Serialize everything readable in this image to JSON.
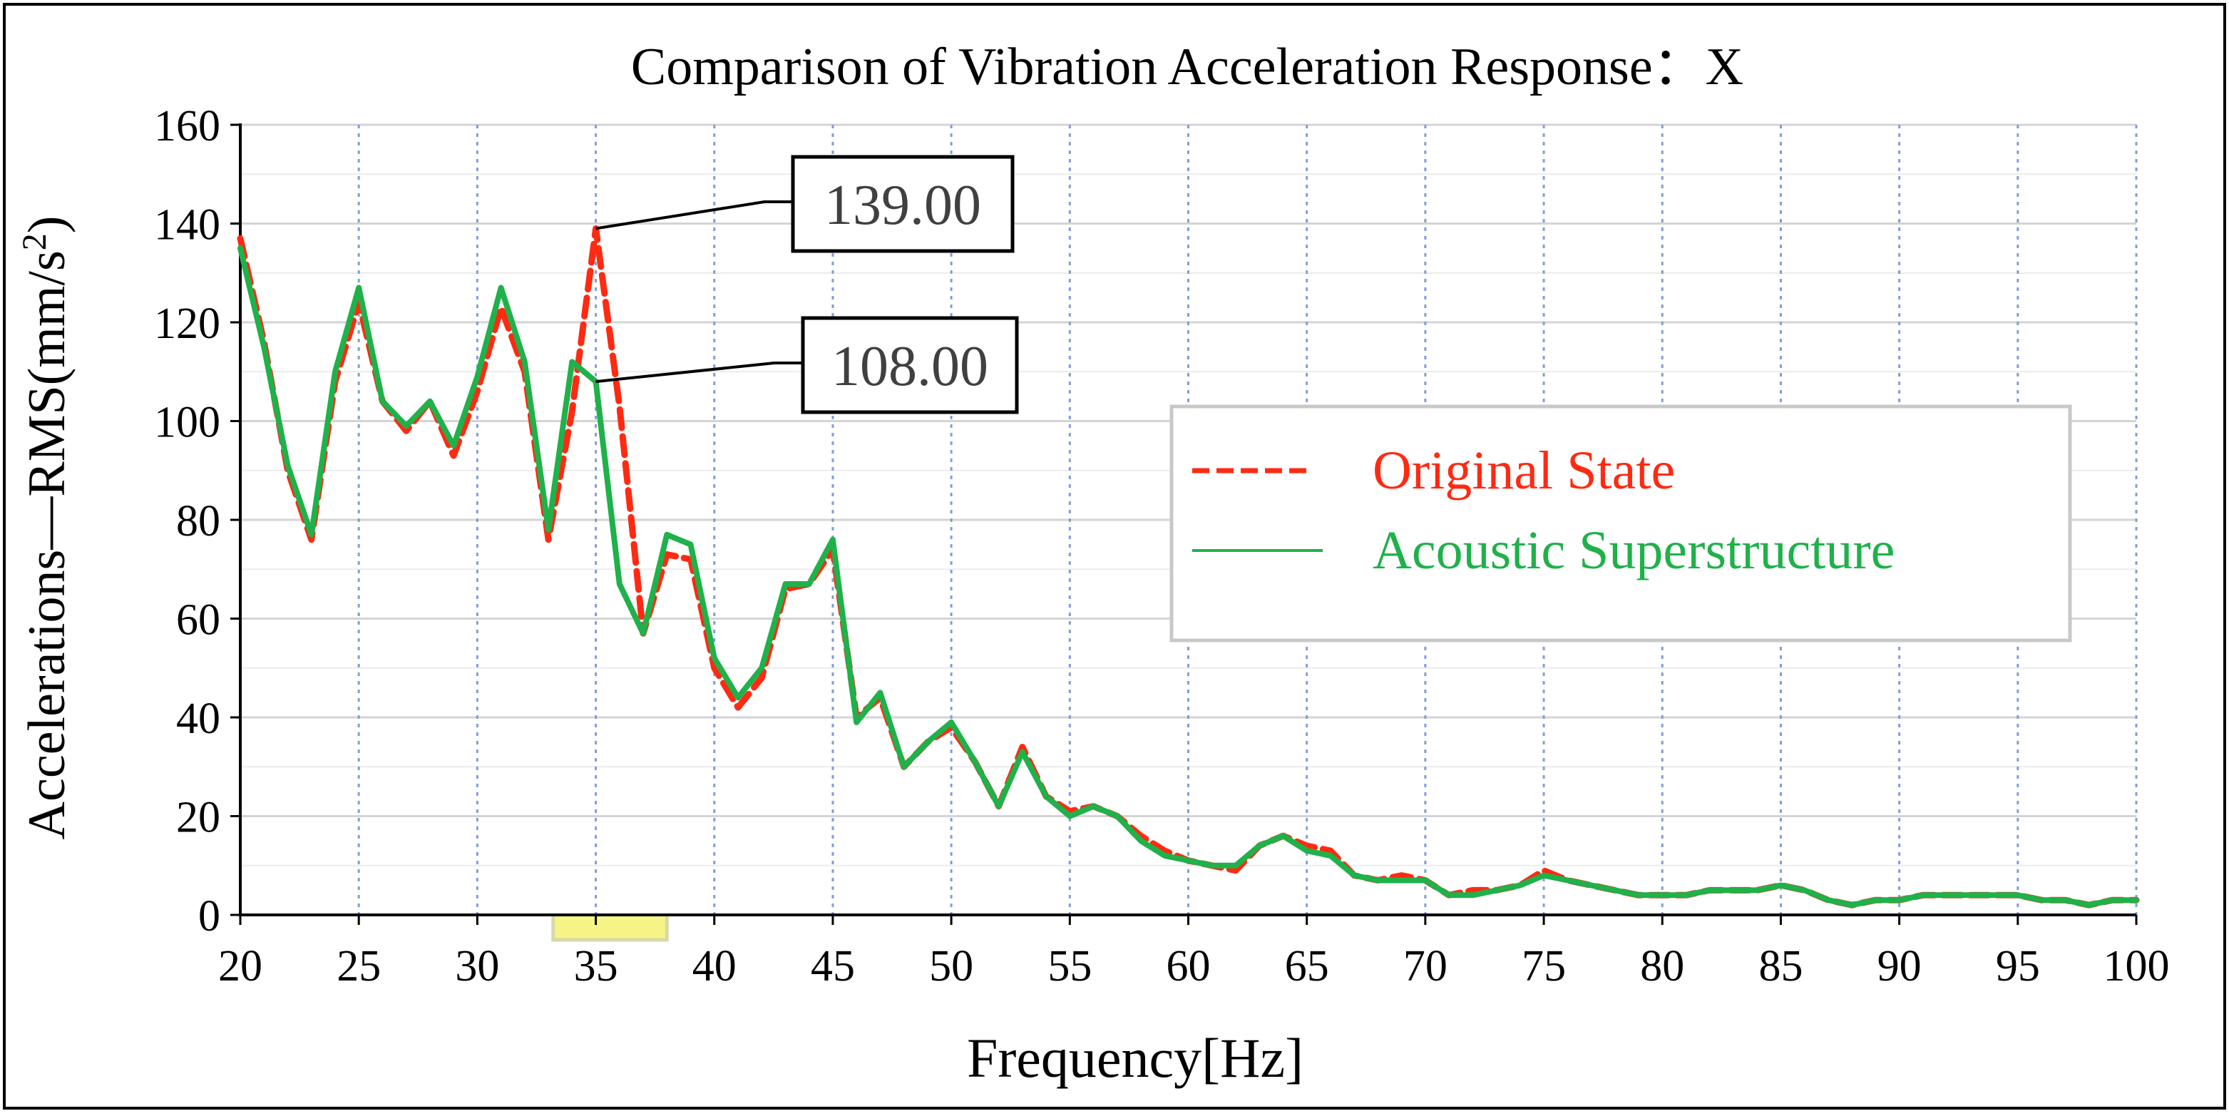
{
  "chart_data": {
    "type": "line",
    "title": "Comparison of Vibration Acceleration Response：X",
    "xlabel": "Frequency[Hz]",
    "ylabel_main": "Accelerations—RMS(mm/s",
    "ylabel_sup": "2",
    "ylabel_close": ")",
    "xlim": [
      20,
      100
    ],
    "ylim": [
      0,
      160
    ],
    "x_ticks": [
      20,
      25,
      30,
      35,
      40,
      45,
      50,
      55,
      60,
      65,
      70,
      75,
      80,
      85,
      90,
      95,
      100
    ],
    "y_ticks": [
      0,
      20,
      40,
      60,
      80,
      100,
      120,
      140,
      160
    ],
    "grid": true,
    "legend_position": "center-right",
    "highlight_band": {
      "x_from": 33.2,
      "x_to": 38,
      "color": "#f5f37a"
    },
    "series": [
      {
        "name": "Original State",
        "color": "#ff2a12",
        "style": "dashed",
        "x": [
          20,
          21,
          22,
          23,
          24,
          25,
          26,
          27,
          28,
          29,
          30,
          31,
          32,
          33,
          34,
          35,
          36,
          37,
          38,
          39,
          40,
          41,
          42,
          43,
          44,
          45,
          46,
          47,
          48,
          49,
          50,
          51,
          52,
          53,
          54,
          55,
          56,
          57,
          58,
          59,
          60,
          61,
          62,
          63,
          64,
          65,
          66,
          67,
          68,
          69,
          70,
          71,
          72,
          73,
          74,
          75,
          76,
          77,
          78,
          79,
          80,
          81,
          82,
          83,
          84,
          85,
          86,
          87,
          88,
          89,
          90,
          91,
          92,
          93,
          94,
          95,
          96,
          97,
          98,
          99,
          100
        ],
        "y": [
          137,
          116,
          90,
          76,
          108,
          124,
          104,
          98,
          104,
          93,
          106,
          123,
          110,
          76,
          102,
          139,
          103,
          57,
          73,
          72,
          50,
          42,
          48,
          66,
          67,
          74,
          40,
          44,
          30,
          35,
          38,
          31,
          22,
          34,
          24,
          21,
          22,
          20,
          16,
          13,
          11,
          10,
          9,
          14,
          16,
          14,
          13,
          8,
          7,
          8,
          7,
          4,
          5,
          5,
          6,
          9,
          7,
          6,
          5,
          4,
          4,
          4,
          5,
          5,
          5,
          6,
          5,
          3,
          2,
          3,
          3,
          4,
          4,
          4,
          4,
          4,
          3,
          3,
          2,
          3,
          3
        ]
      },
      {
        "name": "Acoustic Superstructure",
        "color": "#1fb14a",
        "style": "solid",
        "x": [
          20,
          21,
          22,
          23,
          24,
          25,
          26,
          27,
          28,
          29,
          30,
          31,
          32,
          33,
          34,
          35,
          36,
          37,
          38,
          39,
          40,
          41,
          42,
          43,
          44,
          45,
          46,
          47,
          48,
          49,
          50,
          51,
          52,
          53,
          54,
          55,
          56,
          57,
          58,
          59,
          60,
          61,
          62,
          63,
          64,
          65,
          66,
          67,
          68,
          69,
          70,
          71,
          72,
          73,
          74,
          75,
          76,
          77,
          78,
          79,
          80,
          81,
          82,
          83,
          84,
          85,
          86,
          87,
          88,
          89,
          90,
          91,
          92,
          93,
          94,
          95,
          96,
          97,
          98,
          99,
          100
        ],
        "y": [
          135,
          115,
          91,
          77,
          110,
          127,
          104,
          99,
          104,
          95,
          109,
          127,
          112,
          78,
          112,
          108,
          67,
          57,
          77,
          75,
          52,
          44,
          50,
          67,
          67,
          76,
          39,
          45,
          30,
          35,
          39,
          31,
          22,
          33,
          24,
          20,
          22,
          20,
          15,
          12,
          11,
          10,
          10,
          14,
          16,
          13,
          12,
          8,
          7,
          7,
          7,
          4,
          4,
          5,
          6,
          8,
          7,
          6,
          5,
          4,
          4,
          4,
          5,
          5,
          5,
          6,
          5,
          3,
          2,
          3,
          3,
          4,
          4,
          4,
          4,
          4,
          3,
          3,
          2,
          3,
          3
        ]
      }
    ],
    "annotations": [
      {
        "label": "139.00",
        "x": 35,
        "y": 139
      },
      {
        "label": "108.00",
        "x": 35,
        "y": 108
      }
    ]
  }
}
